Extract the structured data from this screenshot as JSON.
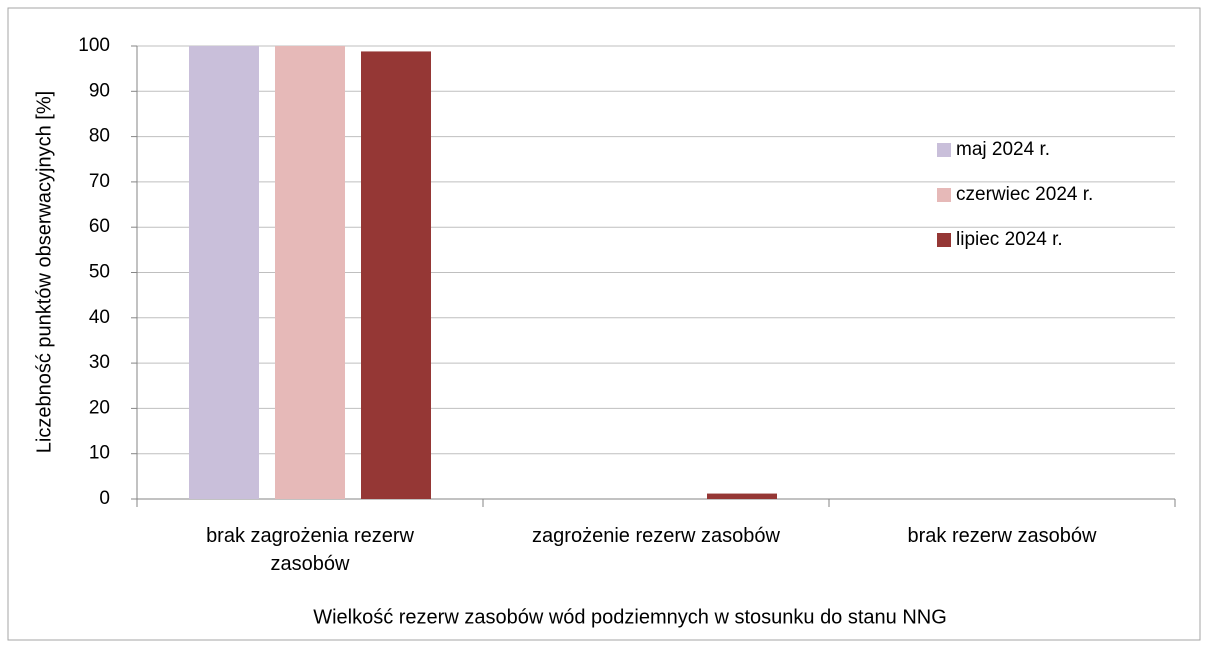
{
  "chart_data": {
    "type": "bar",
    "x_label": "Wielkość rezerw zasobów wód podziemnych w stosunku do stanu NNG",
    "y_label": "Liczebność punktów obserwacyjnych [%]",
    "categories": [
      "brak zagrożenia rezerw zasobów",
      "zagrożenie rezerw zasobów",
      "brak rezerw zasobów"
    ],
    "series": [
      {
        "name": "maj 2024 r.",
        "color": "#c9bfda",
        "values": [
          100,
          0,
          0
        ]
      },
      {
        "name": "czerwiec 2024 r.",
        "color": "#e6b9b8",
        "values": [
          100,
          0,
          0
        ]
      },
      {
        "name": "lipiec 2024 r.",
        "color": "#953735",
        "values": [
          98.8,
          1.2,
          0
        ]
      }
    ],
    "ylim": [
      0,
      100
    ],
    "yticks": [
      0,
      10,
      20,
      30,
      40,
      50,
      60,
      70,
      80,
      90,
      100
    ],
    "grid": true,
    "legend": "right"
  }
}
